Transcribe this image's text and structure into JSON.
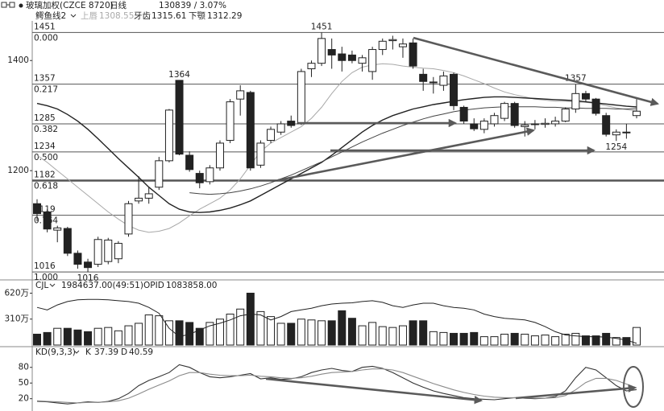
{
  "header": {
    "title": "玻璃加权(CZCE 8720)",
    "period": "日线",
    "last": 1308,
    "change": "39 / 3.07%"
  },
  "chart_data": [
    {
      "type": "candlestick",
      "title": "鳄鱼线2",
      "ylim": [
        1006,
        1469
      ],
      "yticks": [
        1400,
        1200
      ],
      "grid": false,
      "open": [
        1140,
        1125,
        1092,
        1095,
        1050,
        1034,
        1030,
        1035,
        1040,
        1085,
        1145,
        1150,
        1170,
        1218,
        1364,
        1228,
        1195,
        1180,
        1205,
        1255,
        1330,
        1342,
        1210,
        1255,
        1270,
        1290,
        1285,
        1385,
        1395,
        1420,
        1412,
        1410,
        1395,
        1380,
        1420,
        1436,
        1425,
        1432,
        1375,
        1360,
        1355,
        1375,
        1315,
        1285,
        1275,
        1285,
        1295,
        1322,
        1280,
        1284,
        1284,
        1285,
        1290,
        1312,
        1340,
        1330,
        1300,
        1265,
        1270,
        1300
      ],
      "high": [
        1148,
        1130,
        1100,
        1098,
        1055,
        1040,
        1080,
        1078,
        1072,
        1145,
        1190,
        1170,
        1225,
        1312,
        1364,
        1235,
        1200,
        1210,
        1255,
        1330,
        1355,
        1345,
        1255,
        1280,
        1290,
        1300,
        1385,
        1400,
        1451,
        1440,
        1425,
        1418,
        1410,
        1425,
        1440,
        1445,
        1440,
        1440,
        1385,
        1370,
        1380,
        1378,
        1318,
        1295,
        1295,
        1305,
        1325,
        1325,
        1290,
        1292,
        1295,
        1298,
        1315,
        1357,
        1345,
        1332,
        1305,
        1275,
        1285,
        1330
      ],
      "low": [
        1108,
        1088,
        1070,
        1045,
        1022,
        1016,
        1025,
        1030,
        1032,
        1080,
        1140,
        1140,
        1165,
        1215,
        1228,
        1198,
        1168,
        1175,
        1200,
        1250,
        1300,
        1200,
        1205,
        1250,
        1265,
        1278,
        1283,
        1370,
        1390,
        1385,
        1380,
        1395,
        1380,
        1365,
        1410,
        1420,
        1405,
        1385,
        1345,
        1340,
        1345,
        1310,
        1285,
        1272,
        1268,
        1280,
        1290,
        1278,
        1262,
        1275,
        1278,
        1280,
        1288,
        1305,
        1325,
        1300,
        1262,
        1254,
        1258,
        1295
      ],
      "close": [
        1122,
        1094,
        1096,
        1050,
        1030,
        1024,
        1075,
        1074,
        1068,
        1140,
        1150,
        1158,
        1218,
        1310,
        1230,
        1202,
        1178,
        1205,
        1250,
        1325,
        1345,
        1205,
        1250,
        1275,
        1285,
        1282,
        1380,
        1395,
        1440,
        1410,
        1400,
        1400,
        1405,
        1420,
        1435,
        1438,
        1430,
        1390,
        1362,
        1361,
        1372,
        1318,
        1290,
        1276,
        1290,
        1300,
        1322,
        1282,
        1283,
        1285,
        1286,
        1290,
        1312,
        1340,
        1330,
        1304,
        1266,
        1270,
        1269,
        1308
      ],
      "series": [
        {
          "name": "上唇",
          "color": "#a8a8a8",
          "values": [
            1228,
            1215,
            1200,
            1185,
            1170,
            1155,
            1140,
            1125,
            1112,
            1100,
            1092,
            1088,
            1090,
            1095,
            1105,
            1118,
            1130,
            1140,
            1150,
            1165,
            1185,
            1210,
            1235,
            1250,
            1260,
            1270,
            1280,
            1295,
            1315,
            1340,
            1362,
            1378,
            1388,
            1392,
            1394,
            1393,
            1390,
            1388,
            1386,
            1385,
            1382,
            1378,
            1372,
            1365,
            1358,
            1350,
            1343,
            1338,
            1334,
            1330,
            1328,
            1326,
            1326,
            1325,
            1324,
            1322,
            1318,
            1314,
            1311,
            1308.55
          ]
        },
        {
          "name": "牙齿",
          "color": "#222222",
          "values": [
            1322,
            1318,
            1312,
            1302,
            1290,
            1275,
            1258,
            1240,
            1222,
            1205,
            1188,
            1170,
            1155,
            1140,
            1130,
            1125,
            1124,
            1125,
            1128,
            1132,
            1138,
            1145,
            1155,
            1165,
            1175,
            1185,
            1195,
            1205,
            1215,
            1228,
            1242,
            1256,
            1270,
            1282,
            1292,
            1300,
            1306,
            1312,
            1316,
            1320,
            1323,
            1326,
            1329,
            1331,
            1333,
            1334,
            1334,
            1333,
            1332,
            1331,
            1330,
            1329,
            1328,
            1327,
            1325,
            1323,
            1321,
            1319,
            1317,
            1315.61
          ]
        },
        {
          "name": "下颚",
          "color": "#444444",
          "values": [
            null,
            null,
            null,
            null,
            null,
            null,
            null,
            null,
            null,
            null,
            null,
            null,
            null,
            null,
            null,
            1160,
            1158,
            1157,
            1158,
            1160,
            1163,
            1167,
            1172,
            1178,
            1185,
            1192,
            1200,
            1208,
            1216,
            1225,
            1234,
            1243,
            1252,
            1260,
            1268,
            1275,
            1282,
            1288,
            1294,
            1299,
            1303,
            1307,
            1310,
            1312,
            1314,
            1315,
            1316,
            1316,
            1316,
            1316,
            1315,
            1315,
            1314,
            1314,
            1313,
            1313,
            1313,
            1312,
            1312,
            1312.29
          ]
        }
      ],
      "fib_levels": [
        {
          "price": 1451,
          "ratio": "0.000"
        },
        {
          "price": 1357,
          "ratio": "0.217"
        },
        {
          "price": 1285,
          "ratio": "0.382"
        },
        {
          "price": 1234,
          "ratio": "0.500"
        },
        {
          "price": 1182,
          "ratio": "0.618",
          "width": 2.5
        },
        {
          "price": 1119,
          "ratio": "0.764"
        },
        {
          "price": 1016,
          "ratio": "1.000"
        }
      ],
      "annotations": [
        1451,
        1364,
        1357,
        1254,
        1016
      ]
    },
    {
      "type": "bar",
      "title": "CJL",
      "readout": "1984637.00(49:51)",
      "oi_label": "OPID",
      "oi_value": "1083858.00",
      "ylim": [
        0,
        740
      ],
      "yticks": [
        {
          "value": 620,
          "label": "620万"
        },
        {
          "value": 310,
          "label": "310万"
        }
      ],
      "values": [
        130,
        150,
        200,
        200,
        180,
        160,
        200,
        210,
        170,
        230,
        260,
        360,
        350,
        290,
        290,
        270,
        200,
        270,
        310,
        370,
        430,
        620,
        400,
        340,
        260,
        260,
        310,
        300,
        290,
        290,
        410,
        320,
        230,
        270,
        220,
        210,
        230,
        290,
        290,
        160,
        150,
        140,
        140,
        150,
        100,
        100,
        130,
        140,
        130,
        110,
        120,
        100,
        130,
        140,
        110,
        110,
        140,
        90,
        90,
        210
      ],
      "line": [
        450,
        420,
        480,
        520,
        540,
        545,
        545,
        540,
        530,
        520,
        500,
        450,
        380,
        200,
        100,
        130,
        180,
        230,
        260,
        300,
        350,
        370,
        360,
        300,
        340,
        400,
        420,
        440,
        470,
        490,
        500,
        505,
        520,
        530,
        510,
        470,
        450,
        480,
        500,
        500,
        470,
        450,
        440,
        420,
        370,
        340,
        320,
        310,
        300,
        270,
        220,
        160,
        120,
        110,
        100,
        100,
        95,
        80,
        60,
        20
      ]
    },
    {
      "type": "line",
      "title": "KD(9,3,3)",
      "ylim": [
        -2,
        95
      ],
      "yticks": [
        80,
        50,
        20
      ],
      "series": [
        {
          "name": "K",
          "color": "#333333",
          "values": [
            15,
            14,
            12,
            10,
            12,
            14,
            13,
            15,
            20,
            30,
            45,
            55,
            62,
            70,
            85,
            80,
            70,
            62,
            60,
            62,
            65,
            68,
            58,
            60,
            57,
            58,
            62,
            70,
            75,
            78,
            74,
            72,
            80,
            82,
            78,
            70,
            60,
            50,
            42,
            35,
            30,
            26,
            22,
            20,
            19,
            18,
            20,
            22,
            21,
            20,
            21,
            24,
            35,
            60,
            80,
            75,
            60,
            45,
            35,
            37.39
          ]
        },
        {
          "name": "D",
          "color": "#8a8a8a",
          "values": [
            16,
            15,
            14,
            13,
            12,
            13,
            13,
            14,
            16,
            21,
            29,
            38,
            46,
            54,
            64,
            70,
            70,
            67,
            65,
            64,
            64,
            65,
            63,
            62,
            60,
            59,
            60,
            63,
            67,
            70,
            71,
            72,
            75,
            77,
            77,
            75,
            70,
            63,
            56,
            49,
            43,
            37,
            32,
            28,
            25,
            23,
            22,
            22,
            22,
            21,
            21,
            22,
            26,
            37,
            51,
            59,
            59,
            55,
            48,
            40.59
          ]
        }
      ]
    }
  ]
}
